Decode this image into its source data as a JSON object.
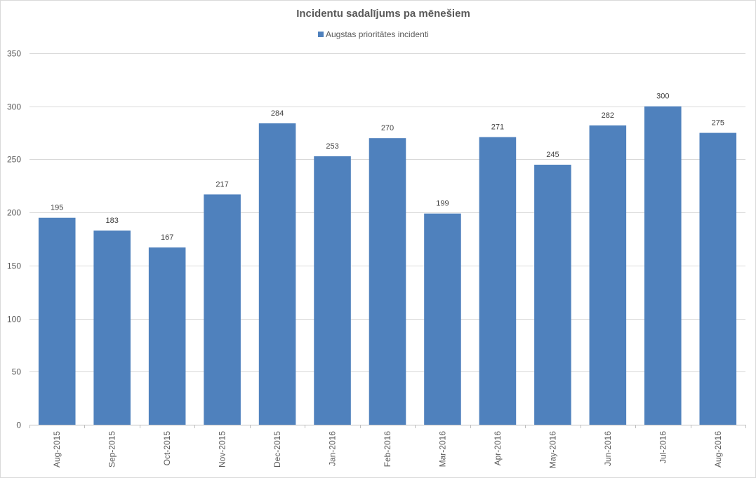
{
  "chart_data": {
    "type": "bar",
    "title": "Incidentu sadalījums pa mēnešiem",
    "xlabel": "",
    "ylabel": "",
    "categories": [
      "Aug-2015",
      "Sep-2015",
      "Oct-2015",
      "Nov-2015",
      "Dec-2015",
      "Jan-2016",
      "Feb-2016",
      "Mar-2016",
      "Apr-2016",
      "May-2016",
      "Jun-2016",
      "Jul-2016",
      "Aug-2016"
    ],
    "series": [
      {
        "name": "Augstas prioritātes incidenti",
        "values": [
          195,
          183,
          167,
          217,
          284,
          253,
          270,
          199,
          271,
          245,
          282,
          300,
          275
        ],
        "color": "#4f81bd"
      }
    ],
    "ylim": [
      0,
      350
    ],
    "yticks": [
      0,
      50,
      100,
      150,
      200,
      250,
      300,
      350
    ],
    "grid": true,
    "legend_position": "top",
    "data_labels": true,
    "xtick_rotation": "vertical"
  }
}
